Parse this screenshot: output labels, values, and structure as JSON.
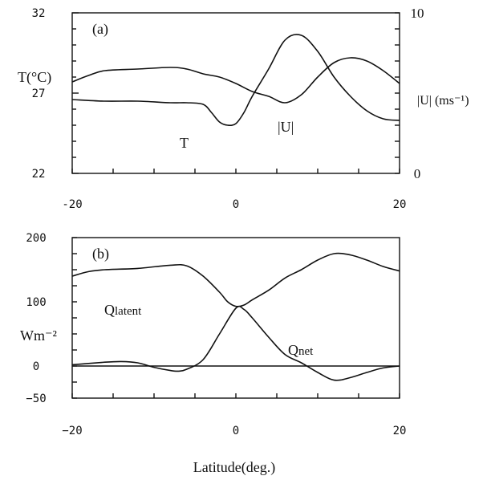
{
  "chart_data": [
    {
      "type": "line",
      "panel_label": "(a)",
      "ylabel_left": "T(°C)",
      "ylabel_right": "|U| (ms⁻¹)",
      "xlim": [
        -20,
        20
      ],
      "ylim_left": [
        22,
        32
      ],
      "ylim_right": [
        0,
        10
      ],
      "x_ticks": [
        "-20",
        "0",
        "20"
      ],
      "y_ticks_left": [
        "22",
        "27",
        "32"
      ],
      "y_ticks_right": [
        "0",
        "10"
      ],
      "series": [
        {
          "name": "T",
          "axis": "left",
          "x": [
            -20,
            -16,
            -12,
            -8,
            -6,
            -4,
            -3,
            -2,
            -1,
            0,
            1,
            2,
            4,
            6,
            8,
            10,
            12,
            14,
            16,
            18,
            20
          ],
          "y": [
            26.6,
            26.5,
            26.5,
            26.4,
            26.4,
            26.3,
            25.8,
            25.2,
            25.0,
            25.1,
            25.8,
            26.8,
            28.5,
            30.3,
            30.6,
            29.6,
            28.0,
            26.8,
            25.9,
            25.4,
            25.3
          ]
        },
        {
          "name": "|U|",
          "axis": "right",
          "x": [
            -20,
            -18,
            -16,
            -12,
            -8,
            -6,
            -4,
            -2,
            0,
            2,
            4,
            6,
            8,
            10,
            12,
            14,
            16,
            18,
            20
          ],
          "y": [
            5.7,
            6.1,
            6.4,
            6.5,
            6.6,
            6.5,
            6.2,
            6.0,
            5.6,
            5.1,
            4.8,
            4.4,
            4.9,
            6.0,
            6.9,
            7.2,
            7.0,
            6.4,
            5.6
          ]
        }
      ]
    },
    {
      "type": "line",
      "panel_label": "(b)",
      "ylabel": "Wm⁻²",
      "xlabel": "Latitude(deg.)",
      "xlim": [
        -20,
        20
      ],
      "ylim": [
        -50,
        200
      ],
      "x_ticks": [
        "−20",
        "0",
        "20"
      ],
      "y_ticks": [
        "−50",
        "0",
        "100",
        "200"
      ],
      "zero_line": true,
      "series": [
        {
          "name": "Qlatent",
          "x": [
            -20,
            -18,
            -16,
            -12,
            -8,
            -6,
            -4,
            -2,
            -1,
            0,
            1,
            2,
            4,
            6,
            8,
            10,
            12,
            14,
            16,
            18,
            20
          ],
          "y": [
            140,
            147,
            150,
            152,
            157,
            156,
            140,
            115,
            100,
            93,
            95,
            103,
            118,
            137,
            150,
            165,
            175,
            173,
            165,
            155,
            148
          ],
          "label_anchor": [
            -16,
            122
          ]
        },
        {
          "name": "Qnet",
          "x": [
            -20,
            -16,
            -14,
            -12,
            -10,
            -8,
            -7,
            -6,
            -4,
            -2,
            0,
            1,
            2,
            4,
            6,
            8,
            10,
            12,
            14,
            16,
            18,
            20
          ],
          "y": [
            2,
            6,
            7,
            5,
            -2,
            -7,
            -8,
            -5,
            10,
            50,
            90,
            88,
            75,
            45,
            18,
            5,
            -10,
            -22,
            -18,
            -10,
            -3,
            0
          ],
          "label_anchor": [
            7,
            63
          ]
        }
      ]
    }
  ]
}
